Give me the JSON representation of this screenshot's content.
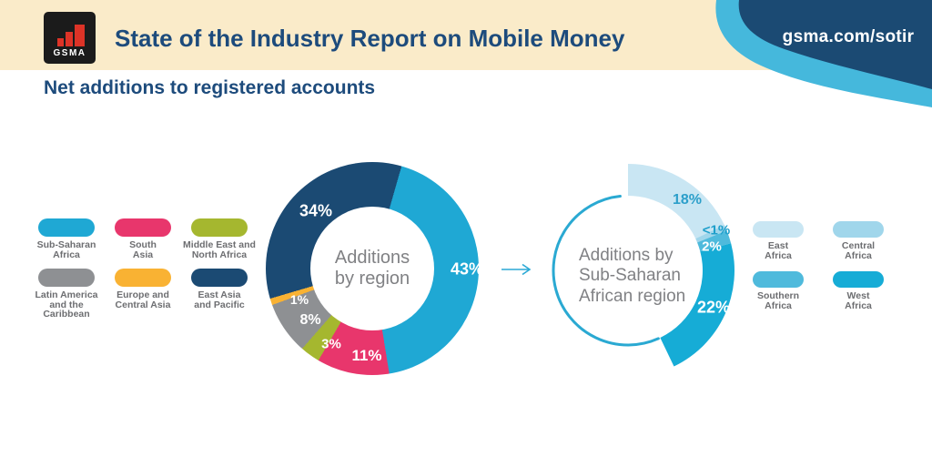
{
  "header": {
    "logo_text": "GSMA",
    "title": "State of the Industry Report on Mobile Money",
    "link": "gsma.com/sotir"
  },
  "page_subtitle": "Net additions to registered accounts",
  "colors": {
    "header_band": "#FAEBC9",
    "brand_navy": "#1B4A73",
    "brand_cyan": "#45B8DC",
    "title_text": "#1D4B7C",
    "center_text": "#808184",
    "legend_text": "#6D6E71",
    "ring_outline": "#2AA9D2",
    "arrow": "#2BA9D5"
  },
  "chart_data": [
    {
      "type": "pie",
      "title": "Additions\nby region",
      "start_angle_deg": 16,
      "segments": [
        {
          "label": "Sub-Saharan Africa",
          "value": 43,
          "display": "43%",
          "color": "#1FA8D4"
        },
        {
          "label": "South Asia",
          "value": 11,
          "display": "11%",
          "color": "#E8366C"
        },
        {
          "label": "Middle East and North Africa",
          "value": 3,
          "display": "3%",
          "color": "#A5B72F"
        },
        {
          "label": "Latin America and the Caribbean",
          "value": 8,
          "display": "8%",
          "color": "#8E9093"
        },
        {
          "label": "Europe and Central Asia",
          "value": 1,
          "display": "1%",
          "color": "#F9B233"
        },
        {
          "label": "East Asia and Pacific",
          "value": 34,
          "display": "34%",
          "color": "#1B4A73"
        }
      ]
    },
    {
      "type": "pie",
      "title": "Additions by\nSub-Saharan\nAfrican region",
      "note": "partial ring: segments cover 43% of circle, rest is a thin outline",
      "start_angle_deg": 0,
      "segments": [
        {
          "label": "East Africa",
          "value": 18,
          "display": "18%",
          "color": "#C9E6F3"
        },
        {
          "label": "Central Africa",
          "value": 0.9,
          "display": "<1%",
          "color": "#A0D6EB"
        },
        {
          "label": "Southern Africa",
          "value": 2,
          "display": "2%",
          "color": "#4FBADC"
        },
        {
          "label": "West Africa",
          "value": 22,
          "display": "22%",
          "color": "#16ACD6"
        }
      ]
    }
  ],
  "legend_left": {
    "items": [
      {
        "label": "Sub-Saharan\nAfrica",
        "color": "#1FA8D4"
      },
      {
        "label": "South\nAsia",
        "color": "#E8366C"
      },
      {
        "label": "Middle East and\nNorth Africa",
        "color": "#A5B72F"
      },
      {
        "label": "Latin America\nand the\nCaribbean",
        "color": "#8E9093"
      },
      {
        "label": "Europe and\nCentral Asia",
        "color": "#F9B233"
      },
      {
        "label": "East Asia\nand Pacific",
        "color": "#1B4A73"
      }
    ]
  },
  "legend_right": {
    "items": [
      {
        "label": "East\nAfrica",
        "color": "#C9E6F3"
      },
      {
        "label": "Central\nAfrica",
        "color": "#A0D6EB"
      },
      {
        "label": "Southern\nAfrica",
        "color": "#4FBADC"
      },
      {
        "label": "West\nAfrica",
        "color": "#16ACD6"
      }
    ]
  },
  "pct_label_colors": {
    "right_18": "#2C9FCA",
    "right_lt1": "#1E9FCB"
  }
}
